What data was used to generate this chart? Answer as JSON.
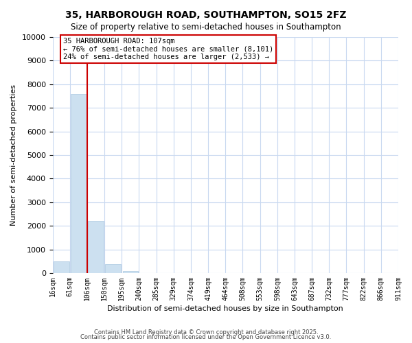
{
  "title": "35, HARBOROUGH ROAD, SOUTHAMPTON, SO15 2FZ",
  "subtitle": "Size of property relative to semi-detached houses in Southampton",
  "xlabel": "Distribution of semi-detached houses by size in Southampton",
  "ylabel": "Number of semi-detached properties",
  "bar_color": "#cce0f0",
  "bar_edgecolor": "#aac8e0",
  "background_color": "#ffffff",
  "grid_color": "#c8d8f0",
  "bins": [
    "16sqm",
    "61sqm",
    "106sqm",
    "150sqm",
    "195sqm",
    "240sqm",
    "285sqm",
    "329sqm",
    "374sqm",
    "419sqm",
    "464sqm",
    "508sqm",
    "553sqm",
    "598sqm",
    "643sqm",
    "687sqm",
    "732sqm",
    "777sqm",
    "822sqm",
    "866sqm",
    "911sqm"
  ],
  "values": [
    500,
    7600,
    2200,
    380,
    90,
    0,
    0,
    0,
    0,
    0,
    0,
    0,
    0,
    0,
    0,
    0,
    0,
    0,
    0,
    0
  ],
  "ylim": [
    0,
    10000
  ],
  "yticks": [
    0,
    1000,
    2000,
    3000,
    4000,
    5000,
    6000,
    7000,
    8000,
    9000,
    10000
  ],
  "property_line_color": "#cc0000",
  "annotation_title": "35 HARBOROUGH ROAD: 107sqm",
  "annotation_line1": "← 76% of semi-detached houses are smaller (8,101)",
  "annotation_line2": "24% of semi-detached houses are larger (2,533) →",
  "annotation_box_color": "#ffffff",
  "annotation_box_edgecolor": "#cc0000",
  "footer1": "Contains HM Land Registry data © Crown copyright and database right 2025.",
  "footer2": "Contains public sector information licensed under the Open Government Licence v3.0."
}
